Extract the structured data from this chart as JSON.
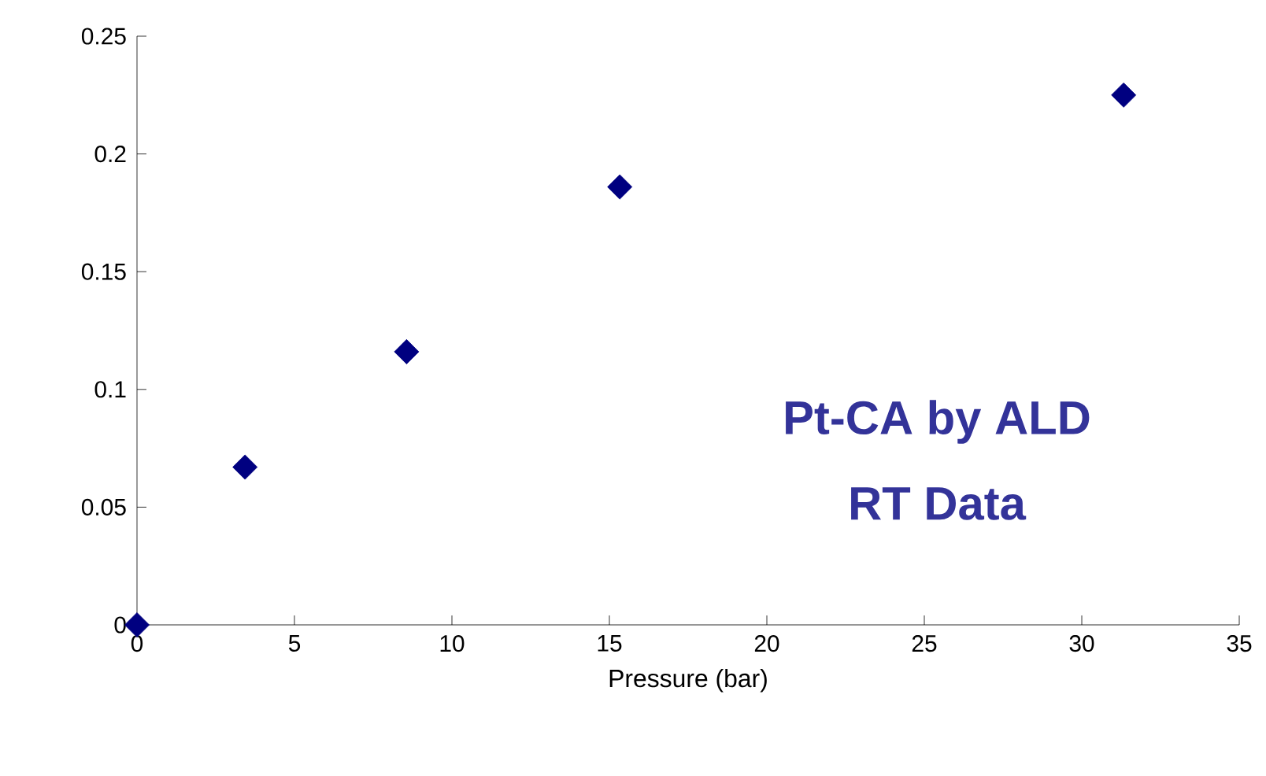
{
  "chart_data": {
    "type": "scatter",
    "xlabel": "Pressure (bar)",
    "x": [
      0,
      3.43,
      8.56,
      15.33,
      31.33
    ],
    "series": [
      {
        "color": "#000080",
        "values": [
          0,
          0.067,
          0.116,
          0.186,
          0.225
        ]
      }
    ],
    "marker": "diamond",
    "grid": false,
    "xlim": [
      0,
      35
    ],
    "xticks": [
      0,
      5,
      10,
      15,
      20,
      25,
      30,
      35
    ],
    "ylim": [
      0,
      0.25
    ],
    "yticks": [
      0,
      0.05,
      0.1,
      0.15,
      0.2,
      0.25
    ],
    "annotations": [
      "Pt-CA by ALD",
      "RT Data"
    ]
  }
}
